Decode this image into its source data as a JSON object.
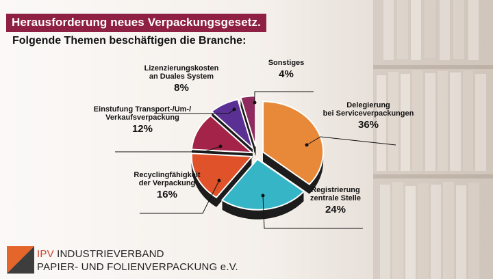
{
  "header": {
    "title": "Herausforderung neues Verpackungsgesetz.",
    "subtitle": "Folgende Themen beschäftigen die Branche:"
  },
  "footer": {
    "org_abbr": "IPV",
    "org_line1": "INDUSTRIEVERBAND",
    "org_line2": "PAPIER- UND FOLIENVERPACKUNG e.V."
  },
  "colors": {
    "title_bg": "#8e2043",
    "logo_orange": "#e5662a",
    "logo_dark": "#3d3d3d"
  },
  "chart_data": {
    "type": "pie",
    "style": "3d-exploded",
    "slices": [
      {
        "label": "Delegierung bei Serviceverpackungen",
        "label_lines": [
          "Delegierung",
          "bei Serviceverpackungen"
        ],
        "value": 36,
        "display": "36%",
        "color": "#e8893a"
      },
      {
        "label": "Registrierung zentrale Stelle",
        "label_lines": [
          "Registrierung",
          "zentrale Stelle"
        ],
        "value": 24,
        "display": "24%",
        "color": "#35b5c6"
      },
      {
        "label": "Recyclingfähigkeit der Verpackung",
        "label_lines": [
          "Recyclingfähigkeit",
          "der Verpackung"
        ],
        "value": 16,
        "display": "16%",
        "color": "#e0522a"
      },
      {
        "label": "Einstufung Transport-/Um-/ Verkaufsverpackung",
        "label_lines": [
          "Einstufung Transport-/Um-/",
          "Verkaufsverpackung"
        ],
        "value": 12,
        "display": "12%",
        "color": "#a32448"
      },
      {
        "label": "Lizenzierungskosten an Duales System",
        "label_lines": [
          "Lizenzierungskosten",
          "an Duales System"
        ],
        "value": 8,
        "display": "8%",
        "color": "#5b3094"
      },
      {
        "label": "Sonstiges",
        "label_lines": [
          "Sonstiges"
        ],
        "value": 4,
        "display": "4%",
        "color": "#8f2a5e"
      }
    ]
  }
}
